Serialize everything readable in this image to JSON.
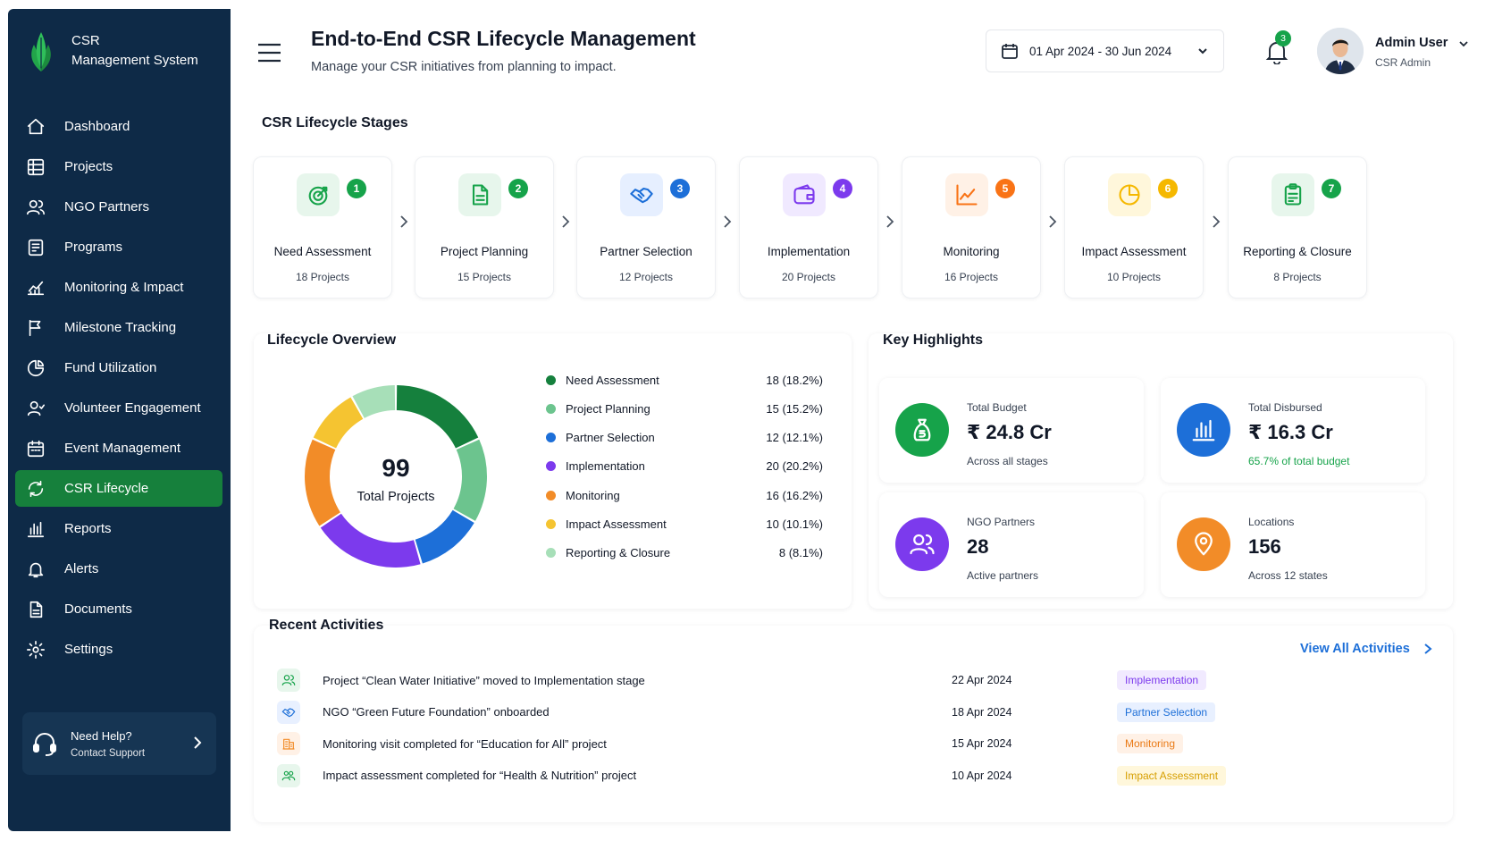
{
  "brand": {
    "line1": "CSR",
    "line2": "Management System"
  },
  "sidebar": {
    "items": [
      {
        "label": "Dashboard",
        "icon": "home-icon"
      },
      {
        "label": "Projects",
        "icon": "grid-icon"
      },
      {
        "label": "NGO Partners",
        "icon": "users-icon"
      },
      {
        "label": "Programs",
        "icon": "programs-icon"
      },
      {
        "label": "Monitoring & Impact",
        "icon": "chart-icon"
      },
      {
        "label": "Milestone Tracking",
        "icon": "flag-icon"
      },
      {
        "label": "Fund Utilization",
        "icon": "pie-icon"
      },
      {
        "label": "Volunteer Engagement",
        "icon": "volunteer-icon"
      },
      {
        "label": "Event Management",
        "icon": "calendar-icon"
      },
      {
        "label": "CSR Lifecycle",
        "icon": "cycle-icon",
        "active": true
      },
      {
        "label": "Reports",
        "icon": "bar-chart-icon"
      },
      {
        "label": "Alerts",
        "icon": "bell-icon"
      },
      {
        "label": "Documents",
        "icon": "document-icon"
      },
      {
        "label": "Settings",
        "icon": "gear-icon"
      }
    ],
    "help": {
      "title": "Need Help?",
      "subtitle": "Contact Support"
    }
  },
  "header": {
    "title": "End-to-End CSR Lifecycle Management",
    "subtitle": "Manage your CSR initiatives from planning to impact.",
    "date_range": "01 Apr 2024 - 30 Jun 2024",
    "notification_count": "3",
    "user_name": "Admin User",
    "user_role": "CSR Admin"
  },
  "stages": {
    "title": "CSR Lifecycle Stages",
    "items": [
      {
        "num": "1",
        "label": "Need Assessment",
        "count": "18 Projects",
        "color": "#16a34a",
        "bg": "#e7f6ec",
        "icon": "target-icon"
      },
      {
        "num": "2",
        "label": "Project Planning",
        "count": "15 Projects",
        "color": "#16a34a",
        "bg": "#e7f6ec",
        "icon": "document-icon"
      },
      {
        "num": "3",
        "label": "Partner Selection",
        "count": "12 Projects",
        "color": "#1d6fd8",
        "bg": "#e6efff",
        "icon": "handshake-icon"
      },
      {
        "num": "4",
        "label": "Implementation",
        "count": "20 Projects",
        "color": "#7c3aed",
        "bg": "#f0e9ff",
        "icon": "wallet-icon"
      },
      {
        "num": "5",
        "label": "Monitoring",
        "count": "16 Projects",
        "color": "#f97316",
        "bg": "#fff1e6",
        "icon": "line-chart-icon"
      },
      {
        "num": "6",
        "label": "Impact Assessment",
        "count": "10 Projects",
        "color": "#f5b800",
        "bg": "#fff7db",
        "icon": "pie-chart-icon"
      },
      {
        "num": "7",
        "label": "Reporting & Closure",
        "count": "8 Projects",
        "color": "#16a34a",
        "bg": "#e7f6ec",
        "icon": "clipboard-icon"
      }
    ]
  },
  "overview": {
    "title": "Lifecycle Overview",
    "total": "99",
    "total_label": "Total Projects"
  },
  "chart_data": {
    "type": "pie",
    "categories": [
      "Need Assessment",
      "Project Planning",
      "Partner Selection",
      "Implementation",
      "Monitoring",
      "Impact Assessment",
      "Reporting & Closure"
    ],
    "values": [
      18,
      15,
      12,
      20,
      16,
      10,
      8
    ],
    "labels": [
      "18 (18.2%)",
      "15 (15.2%)",
      "12 (12.1%)",
      "20 (20.2%)",
      "16 (16.2%)",
      "10 (10.1%)",
      "8 (8.1%)"
    ],
    "colors": [
      "#15803d",
      "#6cc48e",
      "#1d6fd8",
      "#7c3aed",
      "#f28c28",
      "#f5c431",
      "#a7dfb8"
    ],
    "legend": "right"
  },
  "highlights": {
    "title": "Key Highlights",
    "items": [
      {
        "label": "Total Budget",
        "value": "₹ 24.8 Cr",
        "sub": "Across all stages",
        "color": "#16a34a",
        "icon": "money-bag-icon",
        "sub_color": "#374151"
      },
      {
        "label": "Total Disbursed",
        "value": "₹ 16.3 Cr",
        "sub": "65.7% of total budget",
        "color": "#1d6fd8",
        "icon": "bar-chart-icon",
        "sub_color": "#16a34a"
      },
      {
        "label": "NGO Partners",
        "value": "28",
        "sub": "Active partners",
        "color": "#7c3aed",
        "icon": "users-icon",
        "sub_color": "#374151"
      },
      {
        "label": "Locations",
        "value": "156",
        "sub": "Across 12 states",
        "color": "#f28c28",
        "icon": "location-pin-icon",
        "sub_color": "#374151"
      }
    ]
  },
  "activities": {
    "title": "Recent Activities",
    "view_all": "View All Activities",
    "items": [
      {
        "text": "Project “Clean Water Initiative” moved to Implementation stage",
        "date": "22 Apr 2024",
        "tag": "Implementation",
        "tag_color": "#7c3aed",
        "tag_bg": "#f1eaff",
        "icon_color": "#16a34a",
        "icon_bg": "#e7f6ec",
        "icon": "users-icon"
      },
      {
        "text": "NGO “Green Future Foundation” onboarded",
        "date": "18 Apr 2024",
        "tag": "Partner Selection",
        "tag_color": "#1d6fd8",
        "tag_bg": "#e8f0ff",
        "icon_color": "#1d6fd8",
        "icon_bg": "#e8f0ff",
        "icon": "handshake-icon"
      },
      {
        "text": "Monitoring visit completed for “Education for All” project",
        "date": "15 Apr 2024",
        "tag": "Monitoring",
        "tag_color": "#ea7a16",
        "tag_bg": "#fff1e6",
        "icon_color": "#f28c28",
        "icon_bg": "#fff1e6",
        "icon": "building-icon"
      },
      {
        "text": "Impact assessment completed for “Health & Nutrition” project",
        "date": "10 Apr 2024",
        "tag": "Impact Assessment",
        "tag_color": "#d69e00",
        "tag_bg": "#fff7db",
        "icon_color": "#16a34a",
        "icon_bg": "#e7f6ec",
        "icon": "people-icon"
      }
    ]
  }
}
